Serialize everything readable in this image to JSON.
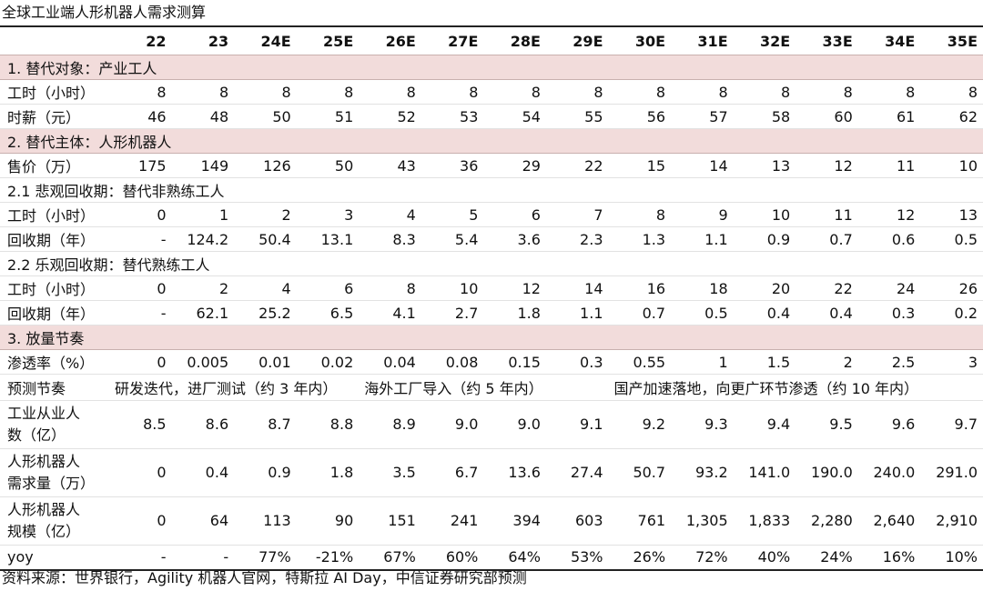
{
  "title": "全球工业端人形机器人需求测算",
  "years": [
    "22",
    "23",
    "24E",
    "25E",
    "26E",
    "27E",
    "28E",
    "29E",
    "30E",
    "31E",
    "32E",
    "33E",
    "34E",
    "35E"
  ],
  "sec1": "1. 替代对象：产业工人",
  "r_hours_label": "工时（小时）",
  "r_hours": [
    "8",
    "8",
    "8",
    "8",
    "8",
    "8",
    "8",
    "8",
    "8",
    "8",
    "8",
    "8",
    "8",
    "8"
  ],
  "r_wage_label": "时薪（元）",
  "r_wage": [
    "46",
    "48",
    "50",
    "51",
    "52",
    "53",
    "54",
    "55",
    "56",
    "57",
    "58",
    "60",
    "61",
    "62"
  ],
  "sec2": "2. 替代主体：人形机器人",
  "r_price_label": "售价（万）",
  "r_price": [
    "175",
    "149",
    "126",
    "50",
    "43",
    "36",
    "29",
    "22",
    "15",
    "14",
    "13",
    "12",
    "11",
    "10"
  ],
  "sub21": "2.1 悲观回收期：替代非熟练工人",
  "r_h21_label": "工时（小时）",
  "r_h21": [
    "0",
    "1",
    "2",
    "3",
    "4",
    "5",
    "6",
    "7",
    "8",
    "9",
    "10",
    "11",
    "12",
    "13"
  ],
  "r_p21_label": "回收期（年）",
  "r_p21": [
    "-",
    "124.2",
    "50.4",
    "13.1",
    "8.3",
    "5.4",
    "3.6",
    "2.3",
    "1.3",
    "1.1",
    "0.9",
    "0.7",
    "0.6",
    "0.5"
  ],
  "sub22": "2.2 乐观回收期：替代熟练工人",
  "r_h22_label": "工时（小时）",
  "r_h22": [
    "0",
    "2",
    "4",
    "6",
    "8",
    "10",
    "12",
    "14",
    "16",
    "18",
    "20",
    "22",
    "24",
    "26"
  ],
  "r_p22_label": "回收期（年）",
  "r_p22": [
    "-",
    "62.1",
    "25.2",
    "6.5",
    "4.1",
    "2.7",
    "1.8",
    "1.1",
    "0.7",
    "0.5",
    "0.4",
    "0.4",
    "0.3",
    "0.2"
  ],
  "sec3": "3. 放量节奏",
  "r_pen_label": "渗透率（%）",
  "r_pen": [
    "0",
    "0.005",
    "0.01",
    "0.02",
    "0.04",
    "0.08",
    "0.15",
    "0.3",
    "0.55",
    "1",
    "1.5",
    "2",
    "2.5",
    "3"
  ],
  "phase_label": "预测节奏",
  "phase1": "研发迭代，进厂测试（约 3 年内）",
  "phase2": "海外工厂导入（约 5 年内）",
  "phase3": "国产加速落地，向更广环节渗透（约 10 年内）",
  "r_emp_label1": "工业从业人",
  "r_emp_label2": "数（亿）",
  "r_emp": [
    "8.5",
    "8.6",
    "8.7",
    "8.8",
    "8.9",
    "9.0",
    "9.0",
    "9.1",
    "9.2",
    "9.3",
    "9.4",
    "9.5",
    "9.6",
    "9.7"
  ],
  "r_dem_label1": "人形机器人",
  "r_dem_label2": "需求量（万）",
  "r_dem": [
    "0",
    "0.4",
    "0.9",
    "1.8",
    "3.5",
    "6.7",
    "13.6",
    "27.4",
    "50.7",
    "93.2",
    "141.0",
    "190.0",
    "240.0",
    "291.0"
  ],
  "r_scale_label1": "人形机器人",
  "r_scale_label2": "规模（亿）",
  "r_scale": [
    "0",
    "64",
    "113",
    "90",
    "151",
    "241",
    "394",
    "603",
    "761",
    "1,305",
    "1,833",
    "2,280",
    "2,640",
    "2,910"
  ],
  "r_yoy_label": "yoy",
  "r_yoy": [
    "-",
    "-",
    "77%",
    "-21%",
    "67%",
    "60%",
    "64%",
    "53%",
    "26%",
    "72%",
    "40%",
    "24%",
    "16%",
    "10%"
  ],
  "source": "资料来源：世界银行，Agility 机器人官网，特斯拉 AI Day，中信证券研究部预测"
}
